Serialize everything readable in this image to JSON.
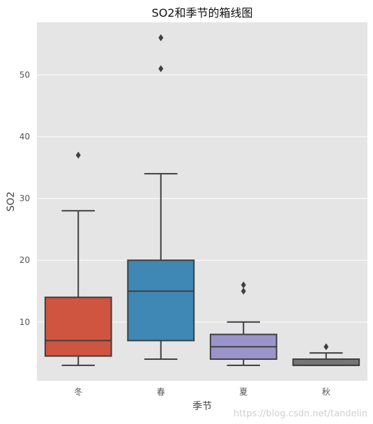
{
  "chart_data": {
    "type": "box",
    "title": "SO2和季节的箱线图",
    "xlabel": "季节",
    "ylabel": "SO2",
    "categories": [
      "冬",
      "春",
      "夏",
      "秋"
    ],
    "ylim": [
      0.5,
      58.5
    ],
    "yticks": [
      10,
      20,
      30,
      40,
      50
    ],
    "grid": true,
    "colors": [
      "#cf5540",
      "#3f87b4",
      "#9a94cb",
      "#767676"
    ],
    "boxes": [
      {
        "whisker_low": 3,
        "q1": 4.5,
        "median": 7,
        "q3": 14,
        "whisker_high": 28,
        "outliers": [
          37
        ]
      },
      {
        "whisker_low": 4,
        "q1": 7,
        "median": 15,
        "q3": 20,
        "whisker_high": 34,
        "outliers": [
          51,
          56
        ]
      },
      {
        "whisker_low": 3,
        "q1": 4,
        "median": 6,
        "q3": 8,
        "whisker_high": 10,
        "outliers": [
          15,
          16
        ]
      },
      {
        "whisker_low": 3,
        "q1": 3,
        "median": 3,
        "q3": 4,
        "whisker_high": 5,
        "outliers": [
          6
        ]
      }
    ]
  },
  "watermark": "https://blog.csdn.net/tandelin"
}
